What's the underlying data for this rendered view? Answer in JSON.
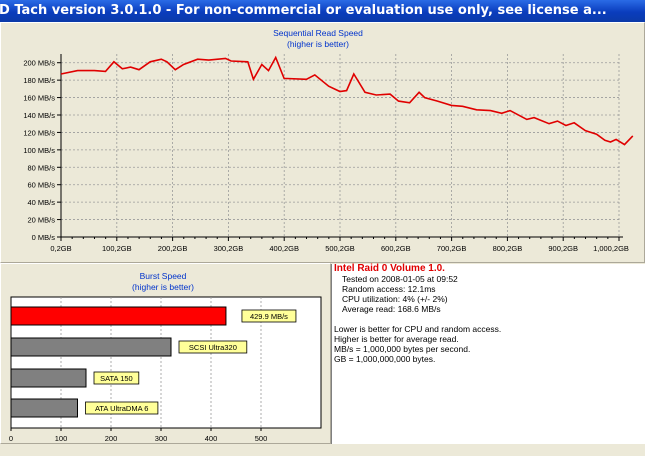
{
  "window": {
    "title": "D Tach version 3.0.1.0  - For non-commercial or evaluation use only, see license a..."
  },
  "sequential": {
    "title": "Sequential Read Speed",
    "subtitle": "(higher is better)"
  },
  "burst": {
    "title": "Burst Speed",
    "subtitle": "(higher is better)"
  },
  "info": {
    "heading": "Intel Raid 0 Volume 1.0.",
    "tested": "Tested on 2008-01-05 at 09:52",
    "random": "Random access: 12.1ms",
    "cpu": "CPU utilization: 4% (+/- 2%)",
    "average": "Average read: 168.6 MB/s",
    "note1": "Lower is better for CPU and random access.",
    "note2": "Higher is better for average read.",
    "note3": "MB/s = 1,000,000 bytes per second.",
    "note4": "GB = 1,000,000,000 bytes."
  },
  "colors": {
    "line": "#e00000",
    "bar_main": "#ff0000",
    "bar_ref": "#808080",
    "label_bg": "#ffff99",
    "title_text": "#0033cc"
  },
  "chart_data": [
    {
      "type": "line",
      "title": "Sequential Read Speed",
      "subtitle": "(higher is better)",
      "xlabel": "",
      "ylabel": "",
      "x_ticks": [
        "0,2GB",
        "100,2GB",
        "200,2GB",
        "300,2GB",
        "400,2GB",
        "500,2GB",
        "600,2GB",
        "700,2GB",
        "800,2GB",
        "900,2GB",
        "1,000,2GB"
      ],
      "y_ticks": [
        "0 MB/s",
        "20 MB/s",
        "40 MB/s",
        "60 MB/s",
        "80 MB/s",
        "100 MB/s",
        "120 MB/s",
        "140 MB/s",
        "160 MB/s",
        "180 MB/s",
        "200 MB/s"
      ],
      "xlim": [
        0.2,
        1000.2
      ],
      "ylim": [
        0,
        210
      ],
      "grid": true,
      "series": [
        {
          "values": [
            [
              0.2,
              187
            ],
            [
              30,
              191
            ],
            [
              60,
              191
            ],
            [
              80,
              190
            ],
            [
              95,
              201
            ],
            [
              110,
              193
            ],
            [
              125,
              195
            ],
            [
              140,
              192
            ],
            [
              160,
              201
            ],
            [
              180,
              204
            ],
            [
              190,
              201
            ],
            [
              205,
              192
            ],
            [
              220,
              198
            ],
            [
              245,
              204
            ],
            [
              265,
              203
            ],
            [
              295,
              205
            ],
            [
              305,
              202
            ],
            [
              335,
              201
            ],
            [
              345,
              181
            ],
            [
              360,
              198
            ],
            [
              372,
              191
            ],
            [
              385,
              206
            ],
            [
              400,
              182
            ],
            [
              440,
              181
            ],
            [
              455,
              186
            ],
            [
              480,
              173
            ],
            [
              500,
              167
            ],
            [
              512,
              168
            ],
            [
              525,
              187
            ],
            [
              545,
              166
            ],
            [
              565,
              163
            ],
            [
              590,
              164
            ],
            [
              605,
              156
            ],
            [
              625,
              154
            ],
            [
              642,
              166
            ],
            [
              652,
              160
            ],
            [
              675,
              156
            ],
            [
              700,
              151
            ],
            [
              720,
              150
            ],
            [
              745,
              146
            ],
            [
              770,
              145
            ],
            [
              790,
              142
            ],
            [
              805,
              145
            ],
            [
              835,
              135
            ],
            [
              848,
              137
            ],
            [
              875,
              130
            ],
            [
              890,
              133
            ],
            [
              905,
              128
            ],
            [
              920,
              131
            ],
            [
              940,
              122
            ],
            [
              960,
              118
            ],
            [
              975,
              111
            ],
            [
              985,
              109
            ],
            [
              995,
              112
            ],
            [
              1010,
              106
            ],
            [
              1025,
              116
            ]
          ]
        }
      ]
    },
    {
      "type": "bar",
      "title": "Burst Speed",
      "subtitle": "(higher is better)",
      "orientation": "horizontal",
      "categories": [
        "429.9 MB/s",
        "SCSI Ultra320",
        "SATA 150",
        "ATA UltraDMA 6"
      ],
      "values": [
        429.9,
        320,
        150,
        133
      ],
      "x_ticks": [
        "0",
        "100",
        "200",
        "300",
        "400",
        "500"
      ],
      "xlim": [
        0,
        620
      ],
      "grid": true
    }
  ]
}
